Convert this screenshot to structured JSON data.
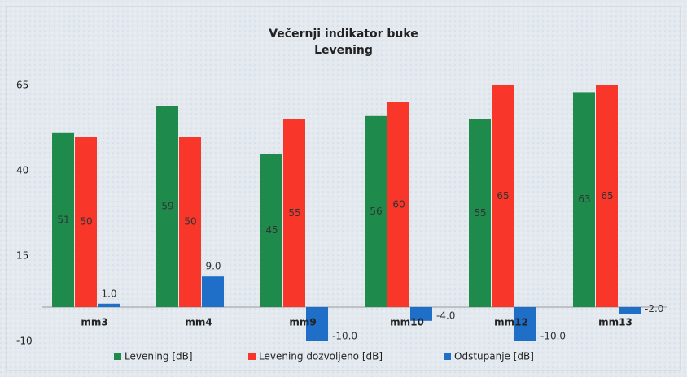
{
  "chart_data": {
    "type": "bar",
    "title": [
      "Večernji indikator buke",
      "Levening"
    ],
    "categories": [
      "mm3",
      "mm4",
      "mm9",
      "mm10",
      "mm12",
      "mm13"
    ],
    "series": [
      {
        "name": "Levening [dB]",
        "color": "#1e8a4c",
        "values": [
          51,
          59,
          45,
          56,
          55,
          63
        ]
      },
      {
        "name": "Levening dozvoljeno [dB]",
        "color": "#f8362a",
        "values": [
          50,
          50,
          55,
          60,
          65,
          65
        ]
      },
      {
        "name": "Odstupanje [dB]",
        "color": "#1f6fc9",
        "values": [
          1,
          9,
          -10,
          -4,
          -10,
          -2
        ],
        "value_labels": [
          "1.0",
          "9.0",
          "-10.0",
          "-4.0",
          "-10.0",
          "-2.0"
        ]
      }
    ],
    "ylim": [
      -10,
      65
    ],
    "yticks": [
      -10,
      15,
      40,
      65
    ],
    "grid": false,
    "legend": "bottom"
  }
}
